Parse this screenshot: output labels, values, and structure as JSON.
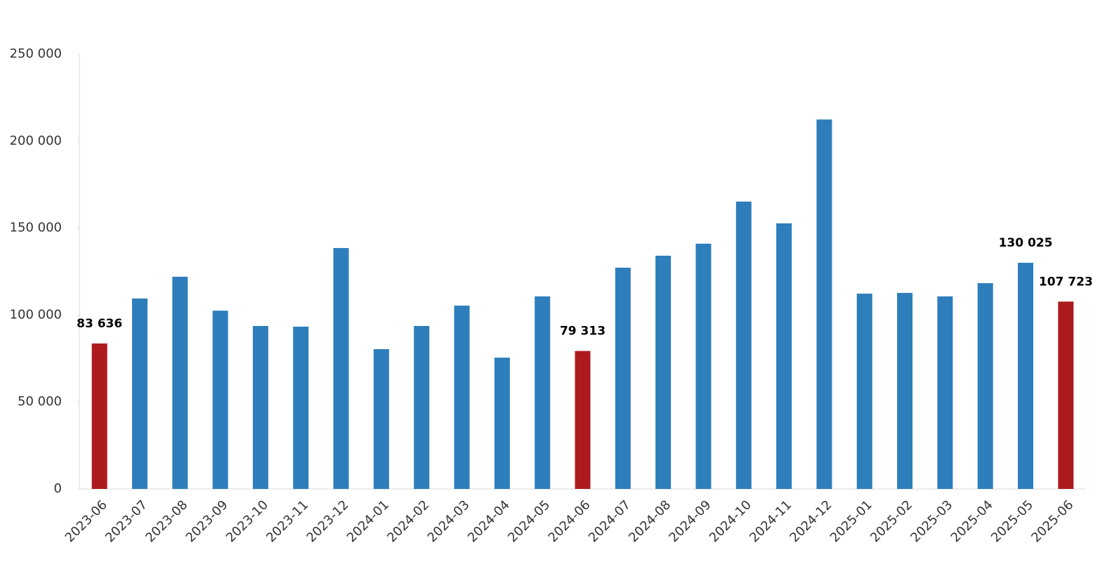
{
  "chart_data": {
    "type": "bar",
    "categories": [
      "2023-06",
      "2023-07",
      "2023-08",
      "2023-09",
      "2023-10",
      "2023-11",
      "2023-12",
      "2024-01",
      "2024-02",
      "2024-03",
      "2024-04",
      "2024-05",
      "2024-06",
      "2024-07",
      "2024-08",
      "2024-09",
      "2024-10",
      "2024-11",
      "2024-12",
      "2025-01",
      "2025-02",
      "2025-03",
      "2025-04",
      "2025-05",
      "2025-06"
    ],
    "values": [
      83636,
      109500,
      122000,
      102500,
      93700,
      93300,
      138500,
      80400,
      93700,
      105400,
      75500,
      110700,
      79313,
      127200,
      134100,
      141000,
      165200,
      152700,
      212400,
      112300,
      112700,
      110700,
      118300,
      130025,
      107723
    ],
    "value_labels": [
      "83 636",
      null,
      null,
      null,
      null,
      null,
      null,
      null,
      null,
      null,
      null,
      null,
      "79 313",
      null,
      null,
      null,
      null,
      null,
      null,
      null,
      null,
      null,
      null,
      "130 025",
      "107 723"
    ],
    "colors": [
      "#ad1b1f",
      "#2e7ebb",
      "#2e7ebb",
      "#2e7ebb",
      "#2e7ebb",
      "#2e7ebb",
      "#2e7ebb",
      "#2e7ebb",
      "#2e7ebb",
      "#2e7ebb",
      "#2e7ebb",
      "#2e7ebb",
      "#ad1b1f",
      "#2e7ebb",
      "#2e7ebb",
      "#2e7ebb",
      "#2e7ebb",
      "#2e7ebb",
      "#2e7ebb",
      "#2e7ebb",
      "#2e7ebb",
      "#2e7ebb",
      "#2e7ebb",
      "#2e7ebb",
      "#ad1b1f"
    ],
    "ylim": [
      0,
      250000
    ],
    "yticks": [
      0,
      {
        "value": 50000,
        "label": "50 000"
      },
      {
        "value": 100000,
        "label": "100 000"
      },
      {
        "value": 150000,
        "label": "150 000"
      },
      {
        "value": 200000,
        "label": "200 000"
      },
      {
        "value": 250000,
        "label": "250 000"
      }
    ]
  }
}
